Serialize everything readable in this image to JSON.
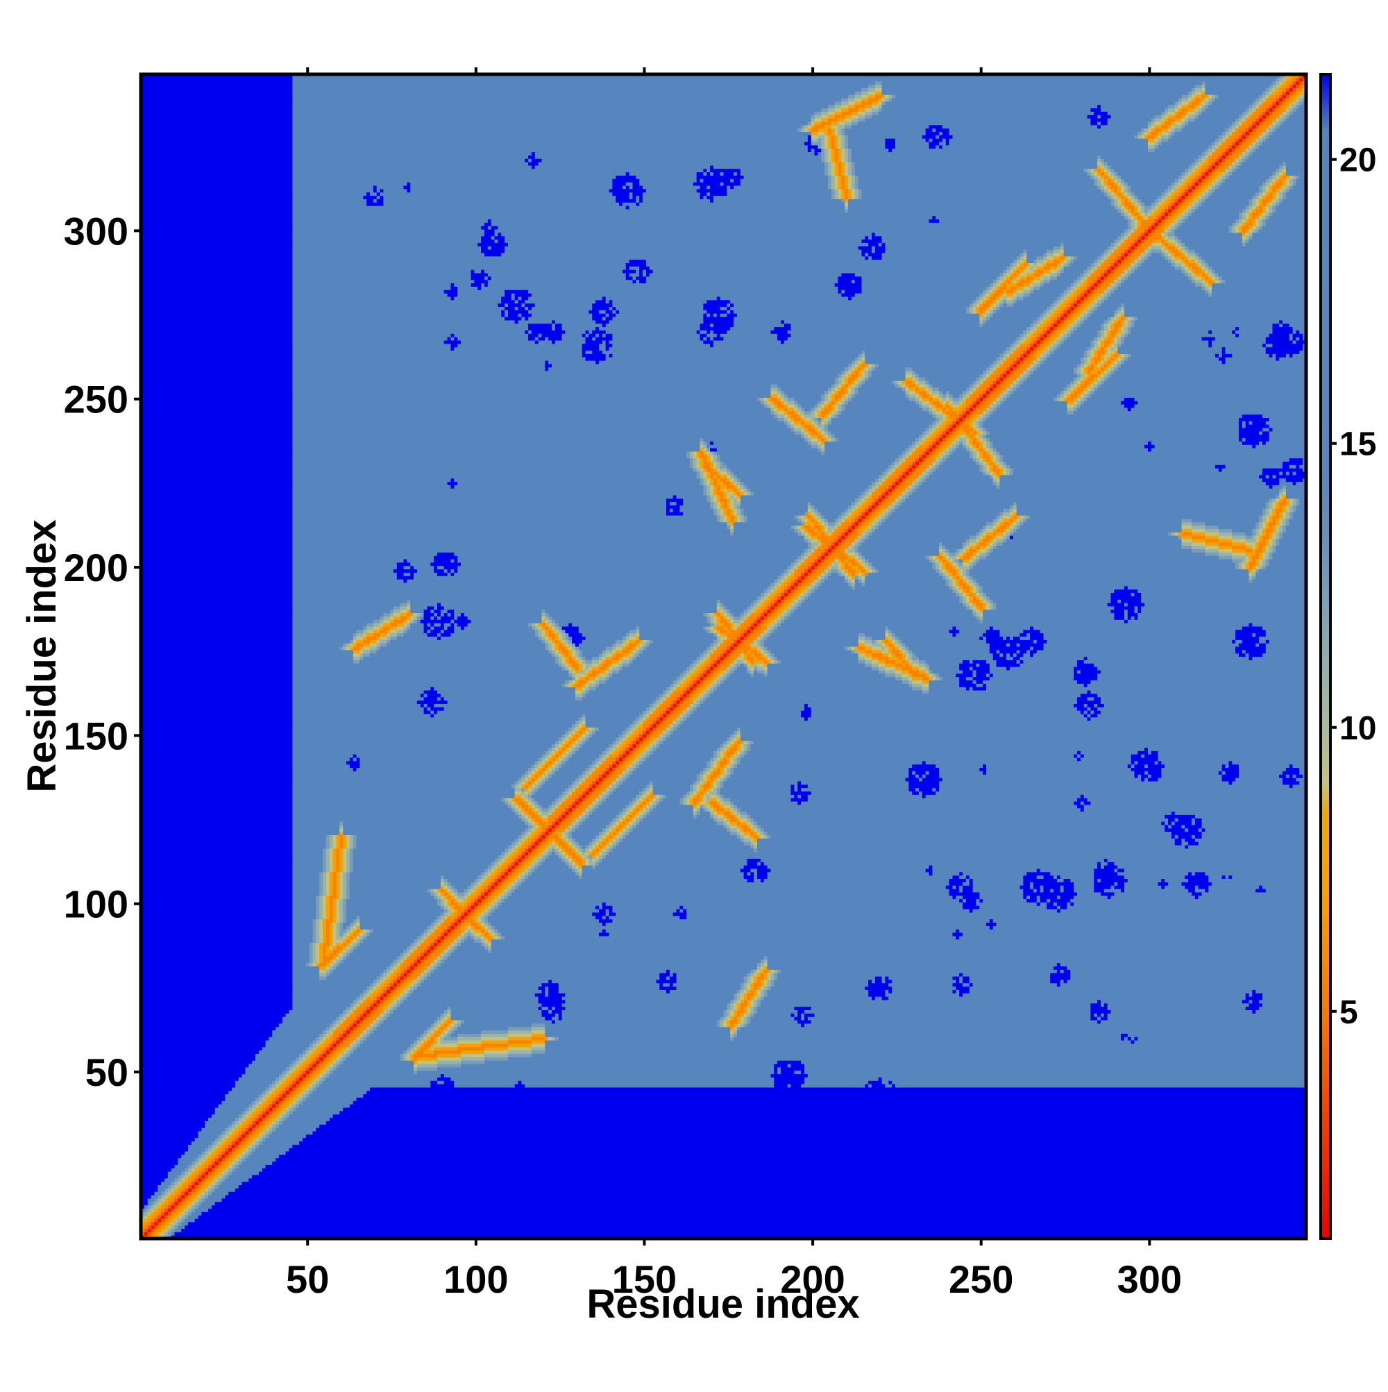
{
  "chart_data": {
    "type": "heatmap",
    "title": "",
    "xlabel": "Residue index",
    "ylabel": "Residue index",
    "n_residues": 346,
    "x_range": [
      1,
      346
    ],
    "y_range": [
      1,
      346
    ],
    "x_ticks": [
      50,
      100,
      150,
      200,
      250,
      300
    ],
    "y_ticks": [
      50,
      100,
      150,
      200,
      250,
      300
    ],
    "x_tick_labels": [
      "50",
      "100",
      "150",
      "200",
      "250",
      "300"
    ],
    "y_tick_labels": [
      "50",
      "100",
      "150",
      "200",
      "250",
      "300"
    ],
    "grid": false,
    "colorbar": {
      "range": [
        1,
        21.5
      ],
      "ticks": [
        5,
        10,
        15,
        20
      ],
      "tick_labels": [
        "5",
        "10",
        "15",
        "20"
      ],
      "stops": [
        {
          "value": 1,
          "color": "#ee0000"
        },
        {
          "value": 3,
          "color": "#f23c00"
        },
        {
          "value": 5,
          "color": "#f77a00"
        },
        {
          "value": 7,
          "color": "#fa9d00"
        },
        {
          "value": 8.5,
          "color": "#f0a800"
        },
        {
          "value": 9,
          "color": "#c8c27a"
        },
        {
          "value": 10,
          "color": "#a9bd9a"
        },
        {
          "value": 11.5,
          "color": "#8aaab5"
        },
        {
          "value": 13,
          "color": "#6e93bd"
        },
        {
          "value": 14.5,
          "color": "#5a85bd"
        },
        {
          "value": 20.5,
          "color": "#5585bd"
        },
        {
          "value": 21.5,
          "color": "#0000f0"
        }
      ]
    },
    "description_values": {
      "background_distance": 18,
      "masked_distance": 21.5,
      "diagonal_distance": 3.8
    },
    "helix_segments": [
      [
        58,
        68
      ],
      [
        78,
        92
      ],
      [
        122,
        140
      ],
      [
        150,
        160
      ],
      [
        170,
        182
      ],
      [
        195,
        210
      ],
      [
        218,
        232
      ],
      [
        246,
        262
      ],
      [
        282,
        300
      ],
      [
        318,
        336
      ]
    ],
    "contact_features": [
      {
        "type": "anti",
        "x1": 84,
        "y1": 55,
        "x2": 120,
        "y2": 60
      },
      {
        "type": "anti",
        "x1": 93,
        "y1": 100,
        "x2": 104,
        "y2": 90
      },
      {
        "type": "anti",
        "x1": 118,
        "y1": 125,
        "x2": 131,
        "y2": 112
      },
      {
        "type": "anti",
        "x1": 135,
        "y1": 115,
        "x2": 152,
        "y2": 132
      },
      {
        "type": "anti",
        "x1": 172,
        "y1": 182,
        "x2": 186,
        "y2": 172
      },
      {
        "type": "anti",
        "x1": 199,
        "y1": 215,
        "x2": 212,
        "y2": 198
      },
      {
        "type": "anti",
        "x1": 245,
        "y1": 203,
        "x2": 260,
        "y2": 215
      },
      {
        "type": "anti",
        "x1": 188,
        "y1": 250,
        "x2": 203,
        "y2": 238
      },
      {
        "type": "anti",
        "x1": 228,
        "y1": 255,
        "x2": 248,
        "y2": 240
      },
      {
        "type": "anti",
        "x1": 276,
        "y1": 250,
        "x2": 290,
        "y2": 263
      },
      {
        "type": "anti",
        "x1": 300,
        "y1": 300,
        "x2": 318,
        "y2": 285
      },
      {
        "type": "anti",
        "x1": 258,
        "y1": 282,
        "x2": 274,
        "y2": 292
      },
      {
        "type": "par",
        "x1": 214,
        "y1": 176,
        "x2": 234,
        "y2": 167
      },
      {
        "type": "par",
        "x1": 168,
        "y1": 230,
        "x2": 178,
        "y2": 222
      },
      {
        "type": "par",
        "x1": 64,
        "y1": 176,
        "x2": 80,
        "y2": 186
      },
      {
        "type": "par",
        "x1": 300,
        "y1": 328,
        "x2": 316,
        "y2": 340
      },
      {
        "type": "par",
        "x1": 200,
        "y1": 330,
        "x2": 220,
        "y2": 340
      },
      {
        "type": "par",
        "x1": 310,
        "y1": 210,
        "x2": 330,
        "y2": 205
      },
      {
        "type": "par",
        "x1": 170,
        "y1": 130,
        "x2": 183,
        "y2": 120
      },
      {
        "type": "par",
        "x1": 54,
        "y1": 82,
        "x2": 65,
        "y2": 92
      },
      {
        "type": "par",
        "x1": 130,
        "y1": 165,
        "x2": 148,
        "y2": 178
      }
    ]
  }
}
